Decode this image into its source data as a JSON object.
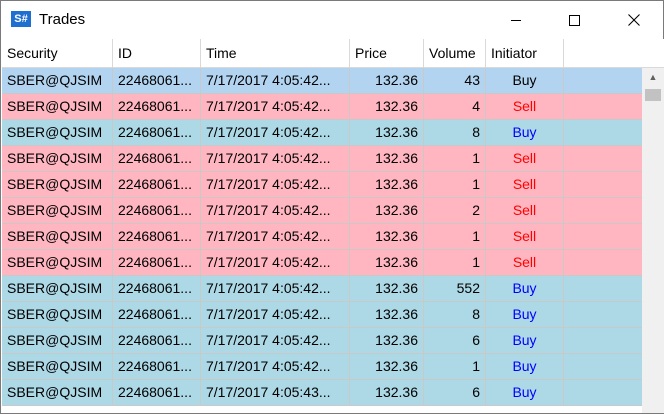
{
  "window": {
    "title": "Trades",
    "icon_text": "S#",
    "icon_name": "stocksharp-logo-icon"
  },
  "colors": {
    "buy_row": "#add8e6",
    "sell_row": "#ffb6c1",
    "selected_row": "#b3d4f0",
    "buy_text": "#0000ff",
    "sell_text": "#ff0000"
  },
  "columns": [
    {
      "key": "security",
      "label": "Security"
    },
    {
      "key": "id",
      "label": "ID"
    },
    {
      "key": "time",
      "label": "Time"
    },
    {
      "key": "price",
      "label": "Price"
    },
    {
      "key": "volume",
      "label": "Volume"
    },
    {
      "key": "initiator",
      "label": "Initiator"
    }
  ],
  "rows": [
    {
      "security": "SBER@QJSIM",
      "id": "22468061...",
      "time": "7/17/2017 4:05:42...",
      "price": "132.36",
      "volume": "43",
      "initiator": "Buy",
      "selected": true
    },
    {
      "security": "SBER@QJSIM",
      "id": "22468061...",
      "time": "7/17/2017 4:05:42...",
      "price": "132.36",
      "volume": "4",
      "initiator": "Sell"
    },
    {
      "security": "SBER@QJSIM",
      "id": "22468061...",
      "time": "7/17/2017 4:05:42...",
      "price": "132.36",
      "volume": "8",
      "initiator": "Buy"
    },
    {
      "security": "SBER@QJSIM",
      "id": "22468061...",
      "time": "7/17/2017 4:05:42...",
      "price": "132.36",
      "volume": "1",
      "initiator": "Sell"
    },
    {
      "security": "SBER@QJSIM",
      "id": "22468061...",
      "time": "7/17/2017 4:05:42...",
      "price": "132.36",
      "volume": "1",
      "initiator": "Sell"
    },
    {
      "security": "SBER@QJSIM",
      "id": "22468061...",
      "time": "7/17/2017 4:05:42...",
      "price": "132.36",
      "volume": "2",
      "initiator": "Sell"
    },
    {
      "security": "SBER@QJSIM",
      "id": "22468061...",
      "time": "7/17/2017 4:05:42...",
      "price": "132.36",
      "volume": "1",
      "initiator": "Sell"
    },
    {
      "security": "SBER@QJSIM",
      "id": "22468061...",
      "time": "7/17/2017 4:05:42...",
      "price": "132.36",
      "volume": "1",
      "initiator": "Sell"
    },
    {
      "security": "SBER@QJSIM",
      "id": "22468061...",
      "time": "7/17/2017 4:05:42...",
      "price": "132.36",
      "volume": "552",
      "initiator": "Buy"
    },
    {
      "security": "SBER@QJSIM",
      "id": "22468061...",
      "time": "7/17/2017 4:05:42...",
      "price": "132.36",
      "volume": "8",
      "initiator": "Buy"
    },
    {
      "security": "SBER@QJSIM",
      "id": "22468061...",
      "time": "7/17/2017 4:05:42...",
      "price": "132.36",
      "volume": "6",
      "initiator": "Buy"
    },
    {
      "security": "SBER@QJSIM",
      "id": "22468061...",
      "time": "7/17/2017 4:05:42...",
      "price": "132.36",
      "volume": "1",
      "initiator": "Buy"
    },
    {
      "security": "SBER@QJSIM",
      "id": "22468061...",
      "time": "7/17/2017 4:05:43...",
      "price": "132.36",
      "volume": "6",
      "initiator": "Buy"
    }
  ]
}
